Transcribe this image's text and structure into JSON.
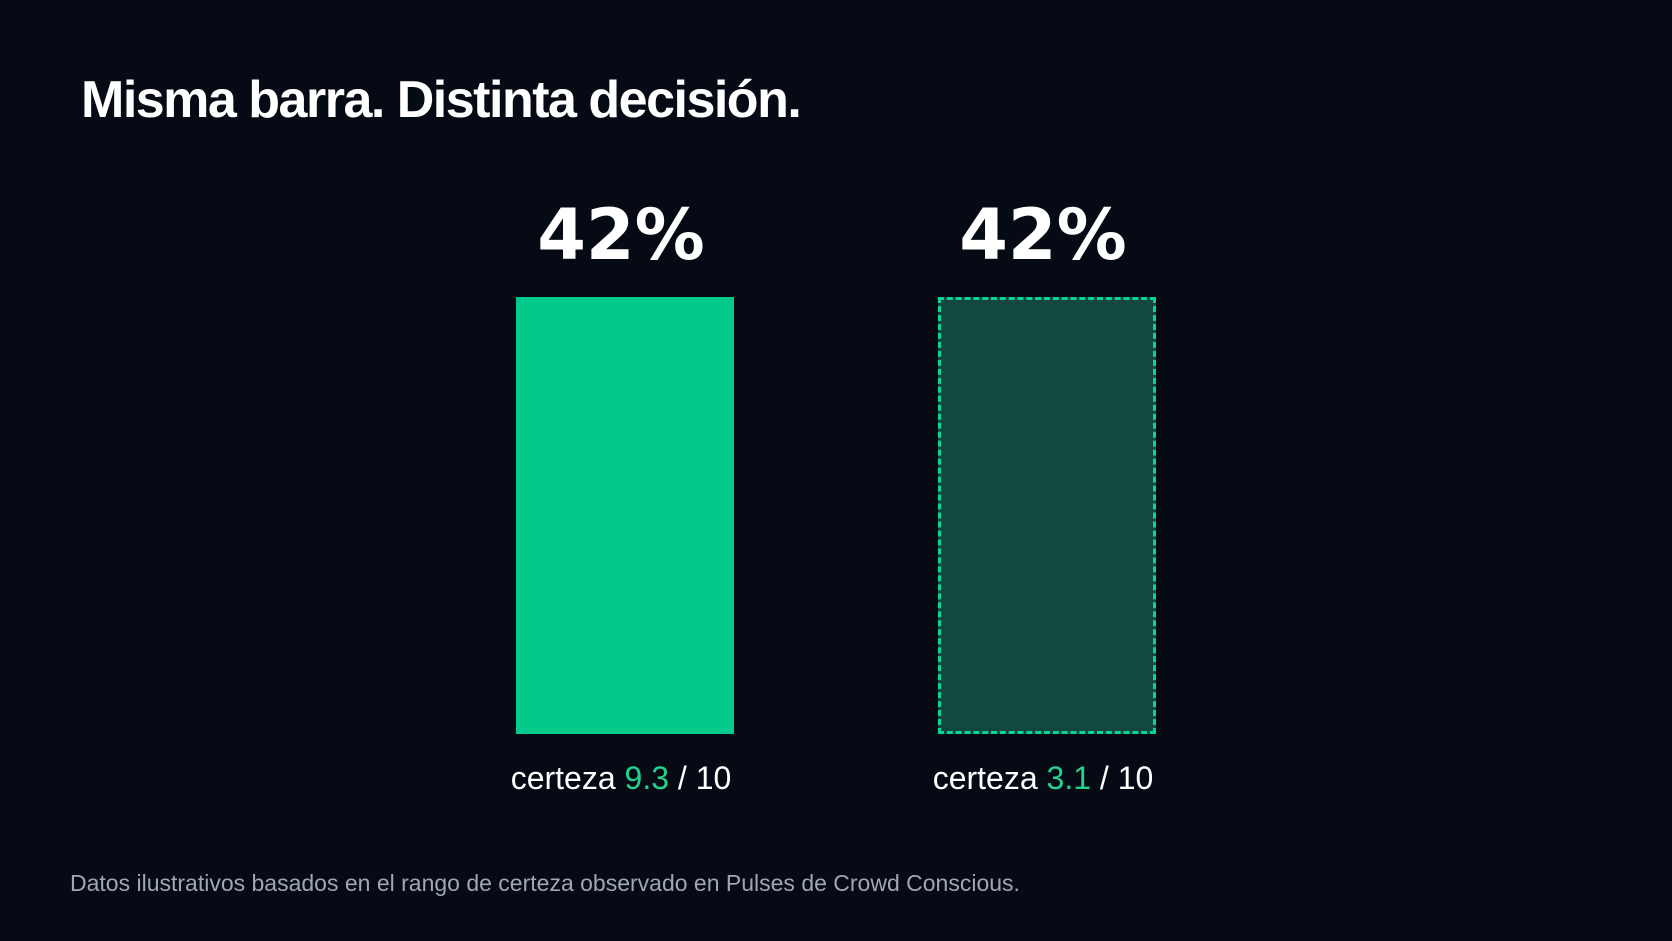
{
  "title": "Misma barra. Distinta decisión.",
  "footnote": "Datos ilustrativos basados en el rango de certeza observado en Pulses de Crowd Conscious.",
  "colors": {
    "background": "#050a14",
    "bar_solid": "#03c98a",
    "bar_dim": "#124840",
    "bar_dash": "#06d594",
    "accent_number": "#22d38e"
  },
  "chart_data": {
    "type": "bar",
    "title": "Misma barra. Distinta decisión.",
    "xlabel": "",
    "ylabel": "",
    "ylim": [
      0,
      42
    ],
    "grid": false,
    "values": [
      42,
      42
    ],
    "bars": [
      {
        "value_label": "42%",
        "value": 42,
        "style": "solid",
        "caption_prefix": "certeza ",
        "certainty": "9.3",
        "caption_suffix": " / 10"
      },
      {
        "value_label": "42%",
        "value": 42,
        "style": "dashed",
        "caption_prefix": "certeza ",
        "certainty": "3.1",
        "caption_suffix": " / 10"
      }
    ]
  }
}
